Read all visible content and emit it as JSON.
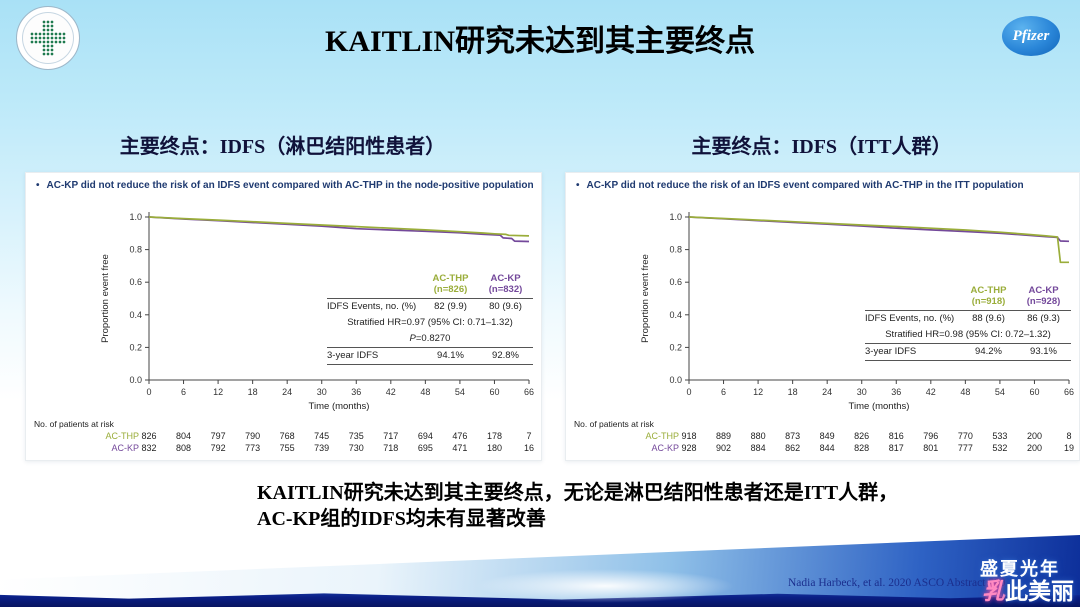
{
  "slide": {
    "title": "KAITLIN研究未达到其主要终点",
    "pfizer_label": "Pfizer",
    "conclusion": {
      "line1": "KAITLIN研究未达到其主要终点，无论是淋巴结阳性患者还是ITT人群，",
      "line2": "AC-KP组的IDFS均未有显著改善"
    },
    "citation": "Nadia Harbeck, et al. 2020 ASCO Abstract 500",
    "watermark": {
      "line1": "盛夏光年",
      "line2_first": "乳",
      "line2_rest": "此美丽"
    }
  },
  "colors": {
    "ac_thp": "#9aad3a",
    "ac_kp": "#74499b",
    "bullet_text": "#1f3a70",
    "slide_bg_top": "#a9e1f6",
    "axis": "#444444"
  },
  "panels": [
    {
      "subtitle": "主要终点：IDFS（淋巴结阳性患者）",
      "bullet": "AC-KP did not reduce the risk of an IDFS event compared with AC-THP in the node-positive population",
      "stats": {
        "columns": [
          {
            "name": "AC-THP",
            "n": "(n=826)"
          },
          {
            "name": "AC-KP",
            "n": "(n=832)"
          }
        ],
        "rows": [
          {
            "label": "IDFS Events, no. (%)",
            "v1": "82 (9.9)",
            "v2": "80 (9.6)"
          },
          {
            "center": "Stratified HR=0.97 (95% CI: 0.71–1.32)"
          },
          {
            "center": "P=0.8270",
            "italic_first": true
          },
          {
            "label": "3-year IDFS",
            "v1": "94.1%",
            "v2": "92.8%",
            "rule_above": true
          }
        ]
      }
    },
    {
      "subtitle": "主要终点：IDFS（ITT人群）",
      "bullet": "AC-KP did not reduce the risk of an IDFS event compared with AC-THP in the ITT population",
      "stats": {
        "columns": [
          {
            "name": "AC-THP",
            "n": "(n=918)"
          },
          {
            "name": "AC-KP",
            "n": "(n=928)"
          }
        ],
        "rows": [
          {
            "label": "IDFS Events, no. (%)",
            "v1": "88 (9.6)",
            "v2": "86 (9.3)"
          },
          {
            "center": "Stratified HR=0.98 (95% CI: 0.72–1.32)"
          },
          {
            "label": "3-year IDFS",
            "v1": "94.2%",
            "v2": "93.1%",
            "rule_above": true
          }
        ]
      }
    }
  ],
  "chart_data": [
    {
      "type": "line",
      "title": "IDFS Kaplan-Meier — node-positive population",
      "xlabel": "Time (months)",
      "ylabel": "Proportion event free",
      "xlim": [
        0,
        66
      ],
      "ylim": [
        0,
        1
      ],
      "x_ticks": [
        0,
        6,
        12,
        18,
        24,
        30,
        36,
        42,
        48,
        54,
        60,
        66
      ],
      "y_ticks": [
        0.0,
        0.2,
        0.4,
        0.6,
        0.8,
        1.0
      ],
      "legend_position": "overlay-table",
      "series": [
        {
          "name": "AC-THP",
          "color": "#9aad3a",
          "x": [
            0,
            6,
            12,
            18,
            24,
            30,
            36,
            42,
            48,
            54,
            58,
            60,
            62,
            62.5,
            66
          ],
          "y": [
            1.0,
            0.99,
            0.981,
            0.971,
            0.961,
            0.951,
            0.941,
            0.931,
            0.921,
            0.91,
            0.902,
            0.897,
            0.893,
            0.888,
            0.884
          ]
        },
        {
          "name": "AC-KP",
          "color": "#74499b",
          "x": [
            0,
            6,
            12,
            18,
            24,
            30,
            36,
            42,
            48,
            54,
            58,
            61,
            61.5,
            63,
            63.5,
            66
          ],
          "y": [
            1.0,
            0.988,
            0.977,
            0.966,
            0.955,
            0.944,
            0.928,
            0.92,
            0.912,
            0.903,
            0.894,
            0.889,
            0.872,
            0.868,
            0.852,
            0.85
          ]
        }
      ],
      "at_risk": {
        "label": "No. of patients at risk",
        "rows": [
          {
            "name": "AC-THP",
            "color": "#9aad3a",
            "values": [
              826,
              804,
              797,
              790,
              768,
              745,
              735,
              717,
              694,
              476,
              178,
              7
            ]
          },
          {
            "name": "AC-KP",
            "color": "#74499b",
            "values": [
              832,
              808,
              792,
              773,
              755,
              739,
              730,
              718,
              695,
              471,
              180,
              16
            ]
          }
        ]
      }
    },
    {
      "type": "line",
      "title": "IDFS Kaplan-Meier — ITT population",
      "xlabel": "Time (months)",
      "ylabel": "Proportion event free",
      "xlim": [
        0,
        66
      ],
      "ylim": [
        0,
        1
      ],
      "x_ticks": [
        0,
        6,
        12,
        18,
        24,
        30,
        36,
        42,
        48,
        54,
        60,
        66
      ],
      "y_ticks": [
        0.0,
        0.2,
        0.4,
        0.6,
        0.8,
        1.0
      ],
      "legend_position": "overlay-table",
      "series": [
        {
          "name": "AC-THP",
          "color": "#9aad3a",
          "x": [
            0,
            6,
            12,
            18,
            24,
            30,
            36,
            42,
            48,
            54,
            58,
            62,
            64,
            64.5,
            66
          ],
          "y": [
            1.0,
            0.991,
            0.981,
            0.971,
            0.961,
            0.951,
            0.942,
            0.931,
            0.92,
            0.907,
            0.896,
            0.884,
            0.877,
            0.722,
            0.722
          ]
        },
        {
          "name": "AC-KP",
          "color": "#74499b",
          "x": [
            0,
            6,
            12,
            18,
            24,
            30,
            36,
            42,
            48,
            54,
            58,
            62,
            64,
            64.5,
            66
          ],
          "y": [
            1.0,
            0.989,
            0.978,
            0.967,
            0.956,
            0.945,
            0.931,
            0.921,
            0.911,
            0.9,
            0.89,
            0.88,
            0.875,
            0.853,
            0.851
          ]
        }
      ],
      "at_risk": {
        "label": "No. of patients at risk",
        "rows": [
          {
            "name": "AC-THP",
            "color": "#9aad3a",
            "values": [
              918,
              889,
              880,
              873,
              849,
              826,
              816,
              796,
              770,
              533,
              200,
              8
            ]
          },
          {
            "name": "AC-KP",
            "color": "#74499b",
            "values": [
              928,
              902,
              884,
              862,
              844,
              828,
              817,
              801,
              777,
              532,
              200,
              19
            ]
          }
        ]
      }
    }
  ]
}
